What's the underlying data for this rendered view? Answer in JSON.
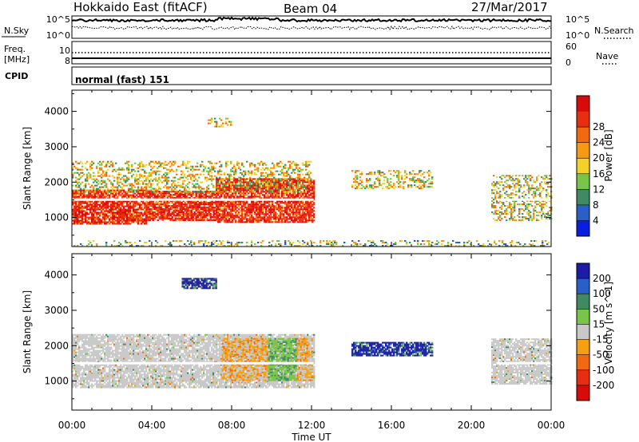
{
  "header": {
    "station": "Hokkaido East (fitACF)",
    "beam": "Beam 04",
    "date": "27/Mar/2017"
  },
  "top_panels": {
    "nsky_label": "N.Sky",
    "nsky_ticks": [
      "10^5",
      "10^0"
    ],
    "nsearch_label": "N.Search",
    "nsearch_ticks": [
      "10^5",
      "10^0"
    ],
    "freq_label_1": "Freq.",
    "freq_label_2": "[MHz]",
    "freq_ticks": [
      "10",
      "8"
    ],
    "nave_label": "Nave",
    "nave_ticks": [
      "60",
      "0"
    ],
    "cpid_label": "CPID",
    "cpid_value": "normal (fast) 151"
  },
  "chart_data": [
    {
      "type": "heatmap",
      "name": "power",
      "ylabel": "Slant Range [km]",
      "xlabel": "Time UT",
      "x_ticks": [
        "00:00",
        "04:00",
        "08:00",
        "12:00",
        "16:00",
        "20:00",
        "00:00"
      ],
      "xlim_hours": [
        0,
        24
      ],
      "y_ticks": [
        1000,
        2000,
        3000,
        4000
      ],
      "ylim": [
        180,
        4600
      ],
      "colorbar": {
        "label": "Power [dB]",
        "ticks": [
          4,
          8,
          12,
          16,
          20,
          24,
          28
        ],
        "range": [
          0,
          32
        ],
        "colors": [
          "#0a1ee0",
          "#2a5fc8",
          "#3f8a62",
          "#7ac44a",
          "#f2d22a",
          "#f59a12",
          "#f26a10",
          "#e82e10",
          "#d80b0b"
        ]
      },
      "regions": [
        {
          "t": [
            0,
            3.7
          ],
          "r": [
            800,
            1750
          ],
          "level": "high"
        },
        {
          "t": [
            3.7,
            7.2
          ],
          "r": [
            900,
            1750
          ],
          "level": "high"
        },
        {
          "t": [
            7.2,
            12.1
          ],
          "r": [
            850,
            2100
          ],
          "level": "high"
        },
        {
          "t": [
            0,
            12
          ],
          "r": [
            1700,
            2600
          ],
          "level": "medium"
        },
        {
          "t": [
            6.8,
            8.0
          ],
          "r": [
            3550,
            3800
          ],
          "level": "medium"
        },
        {
          "t": [
            14,
            18
          ],
          "r": [
            1800,
            2300
          ],
          "level": "medium"
        },
        {
          "t": [
            21,
            24
          ],
          "r": [
            900,
            2200
          ],
          "level": "medium"
        },
        {
          "t": [
            0,
            24
          ],
          "r": [
            180,
            360
          ],
          "level": "noise"
        }
      ]
    },
    {
      "type": "heatmap",
      "name": "velocity",
      "ylabel": "Slant Range [km]",
      "xlabel": "Time UT",
      "x_ticks": [
        "00:00",
        "04:00",
        "08:00",
        "12:00",
        "16:00",
        "20:00",
        "00:00"
      ],
      "xlim_hours": [
        0,
        24
      ],
      "y_ticks": [
        1000,
        2000,
        3000,
        4000
      ],
      "ylim": [
        180,
        4600
      ],
      "colorbar": {
        "label": "Velocity [m s^-1]",
        "ticks": [
          "200",
          "100",
          "50",
          "15",
          "-15",
          "-50",
          "-100",
          "-200"
        ],
        "colors": [
          "#1c1ca8",
          "#2a5fc8",
          "#3f8a62",
          "#7ac44a",
          "#c8c8c8",
          "#f5a012",
          "#f26a10",
          "#e82e10",
          "#d80b0b"
        ]
      },
      "regions": [
        {
          "t": [
            0,
            12.1
          ],
          "r": [
            800,
            2300
          ],
          "level": "ground"
        },
        {
          "t": [
            7.5,
            12.0
          ],
          "r": [
            1000,
            2200
          ],
          "level": "mixed"
        },
        {
          "t": [
            5.5,
            7.2
          ],
          "r": [
            3600,
            3900
          ],
          "level": "positive"
        },
        {
          "t": [
            14,
            18
          ],
          "r": [
            1700,
            2100
          ],
          "level": "positive"
        },
        {
          "t": [
            21,
            24
          ],
          "r": [
            900,
            2200
          ],
          "level": "ground"
        }
      ]
    }
  ]
}
